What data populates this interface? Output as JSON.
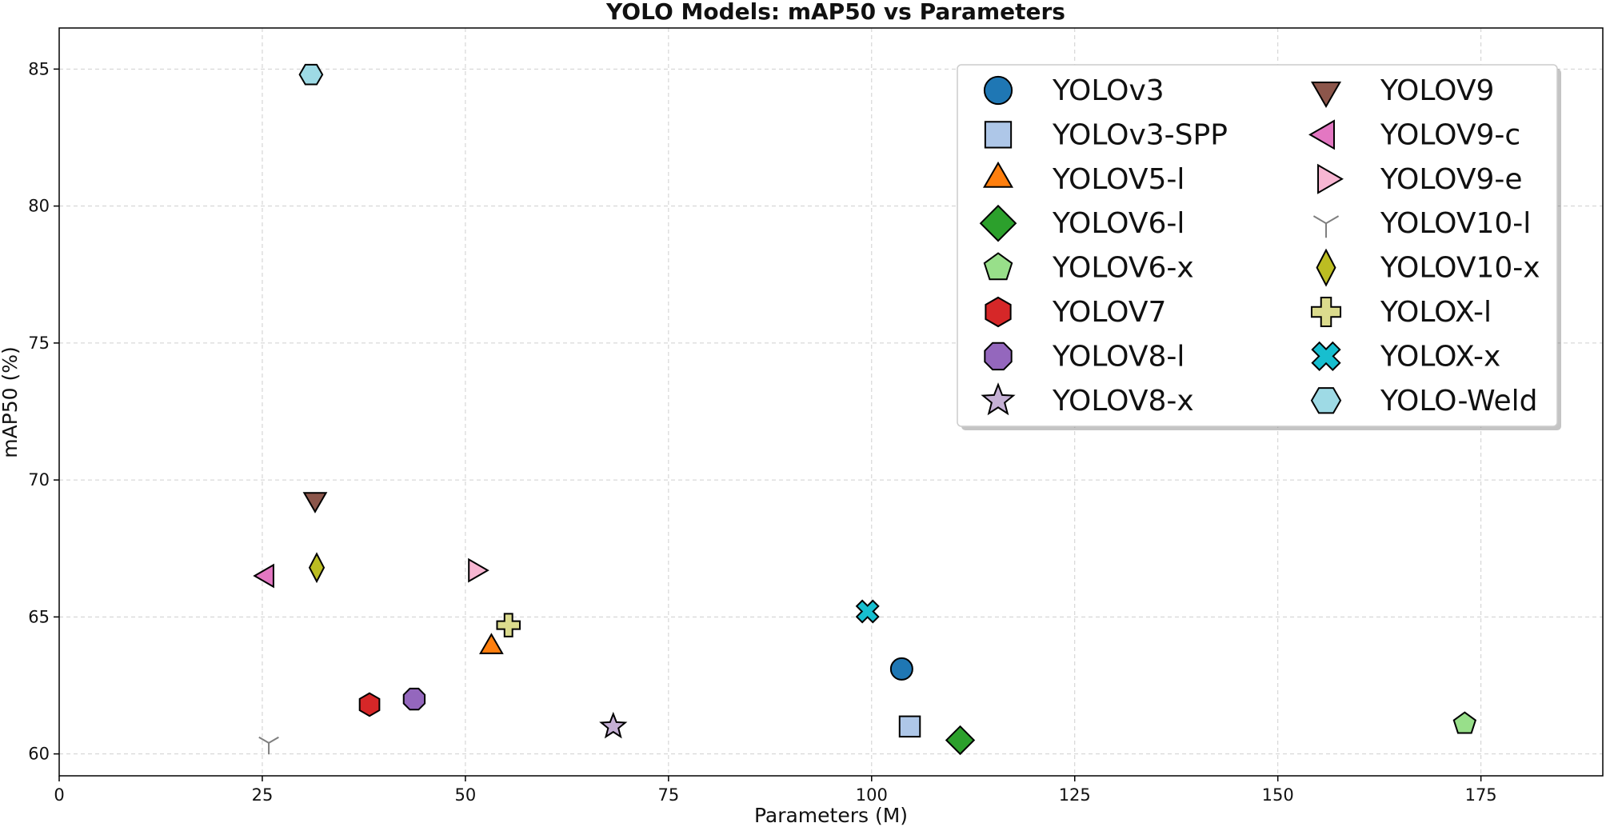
{
  "chart_data": {
    "type": "scatter",
    "title": "YOLO Models: mAP50 vs Parameters",
    "xlabel": "Parameters (M)",
    "ylabel": "mAP50 (%)",
    "xlim": [
      0,
      190
    ],
    "ylim": [
      59.2,
      86.5
    ],
    "xticks": [
      0,
      25,
      50,
      75,
      100,
      125,
      150,
      175
    ],
    "yticks": [
      60,
      65,
      70,
      75,
      80,
      85
    ],
    "grid": true,
    "legend_position": "top-right",
    "legend_columns": 2,
    "series": [
      {
        "name": "YOLOv3",
        "x": 103.7,
        "y": 63.1,
        "marker": "circle",
        "color": "#1f77b4"
      },
      {
        "name": "YOLOv3-SPP",
        "x": 104.7,
        "y": 61.0,
        "marker": "square",
        "color": "#aec7e8"
      },
      {
        "name": "YOLOV5-l",
        "x": 53.2,
        "y": 63.9,
        "marker": "triangle-up",
        "color": "#ff7f0e"
      },
      {
        "name": "YOLOV6-l",
        "x": 110.9,
        "y": 60.5,
        "marker": "diamond",
        "color": "#2ca02c"
      },
      {
        "name": "YOLOV6-x",
        "x": 173.0,
        "y": 61.1,
        "marker": "pentagon",
        "color": "#98df8a"
      },
      {
        "name": "YOLOV7",
        "x": 38.2,
        "y": 61.8,
        "marker": "hexagon",
        "color": "#d62728"
      },
      {
        "name": "YOLOV8-l",
        "x": 43.7,
        "y": 62.0,
        "marker": "octagon",
        "color": "#9467bd"
      },
      {
        "name": "YOLOV8-x",
        "x": 68.2,
        "y": 61.0,
        "marker": "star",
        "color": "#c5b0d5"
      },
      {
        "name": "YOLOV9",
        "x": 31.5,
        "y": 69.3,
        "marker": "triangle-down",
        "color": "#8c564b"
      },
      {
        "name": "YOLOV9-c",
        "x": 25.6,
        "y": 66.5,
        "marker": "triangle-left",
        "color": "#e377c2"
      },
      {
        "name": "YOLOV9-e",
        "x": 51.2,
        "y": 66.7,
        "marker": "triangle-right",
        "color": "#f7b6d2"
      },
      {
        "name": "YOLOV10-l",
        "x": 25.8,
        "y": 60.4,
        "marker": "tri-down",
        "color": "#7f7f7f"
      },
      {
        "name": "YOLOV10-x",
        "x": 31.7,
        "y": 66.8,
        "marker": "thin-diamond",
        "color": "#bcbd22"
      },
      {
        "name": "YOLOX-l",
        "x": 55.3,
        "y": 64.7,
        "marker": "plus-filled",
        "color": "#dbdb8d"
      },
      {
        "name": "YOLOX-x",
        "x": 99.5,
        "y": 65.2,
        "marker": "x-filled",
        "color": "#17becf"
      },
      {
        "name": "YOLO-Weld",
        "x": 31.0,
        "y": 84.8,
        "marker": "hexagon-flat",
        "color": "#9edae5"
      }
    ]
  }
}
